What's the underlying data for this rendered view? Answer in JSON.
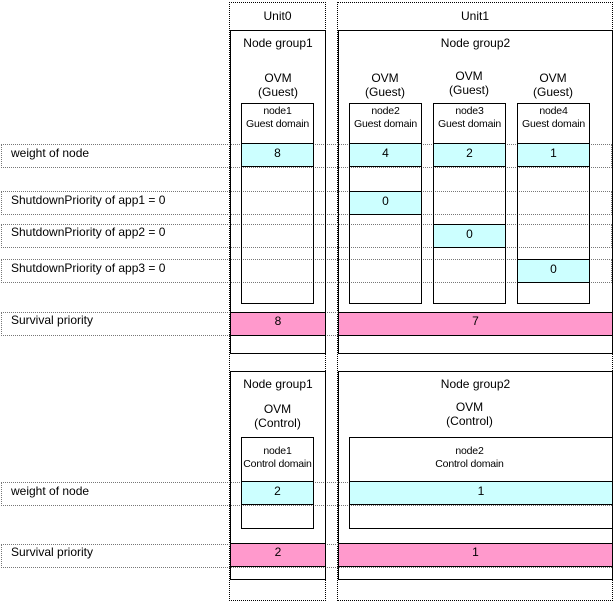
{
  "units": {
    "unit0": "Unit0",
    "unit1": "Unit1"
  },
  "top": {
    "group1": "Node group1",
    "group2": "Node group2",
    "ovm": [
      "OVM\n(Guest)",
      "OVM\n(Guest)",
      "OVM\n(Guest)",
      "OVM\n(Guest)"
    ],
    "nodes": [
      "node1\nGuest domain",
      "node2\nGuest domain",
      "node3\nGuest domain",
      "node4\nGuest domain"
    ],
    "weights": [
      "8",
      "4",
      "2",
      "1"
    ],
    "app_values": [
      "0",
      "0",
      "0"
    ],
    "survival": [
      "8",
      "7"
    ]
  },
  "labels": {
    "weight": "weight of node",
    "app1": "ShutdownPriority of app1 = 0",
    "app2": "ShutdownPriority of app2 = 0",
    "app3": "ShutdownPriority of app3 = 0",
    "survival": "Survival priority"
  },
  "bottom": {
    "group1": "Node group1",
    "group2": "Node group2",
    "ovm": [
      "OVM\n(Control)",
      "OVM\n(Control)"
    ],
    "nodes": [
      "node1\nControl domain",
      "node2\nControl domain"
    ],
    "weights": [
      "2",
      "1"
    ],
    "survival": [
      "2",
      "1"
    ]
  },
  "colors": {
    "weight_fill": "#ccffff",
    "survival_fill": "#ff99cc"
  }
}
